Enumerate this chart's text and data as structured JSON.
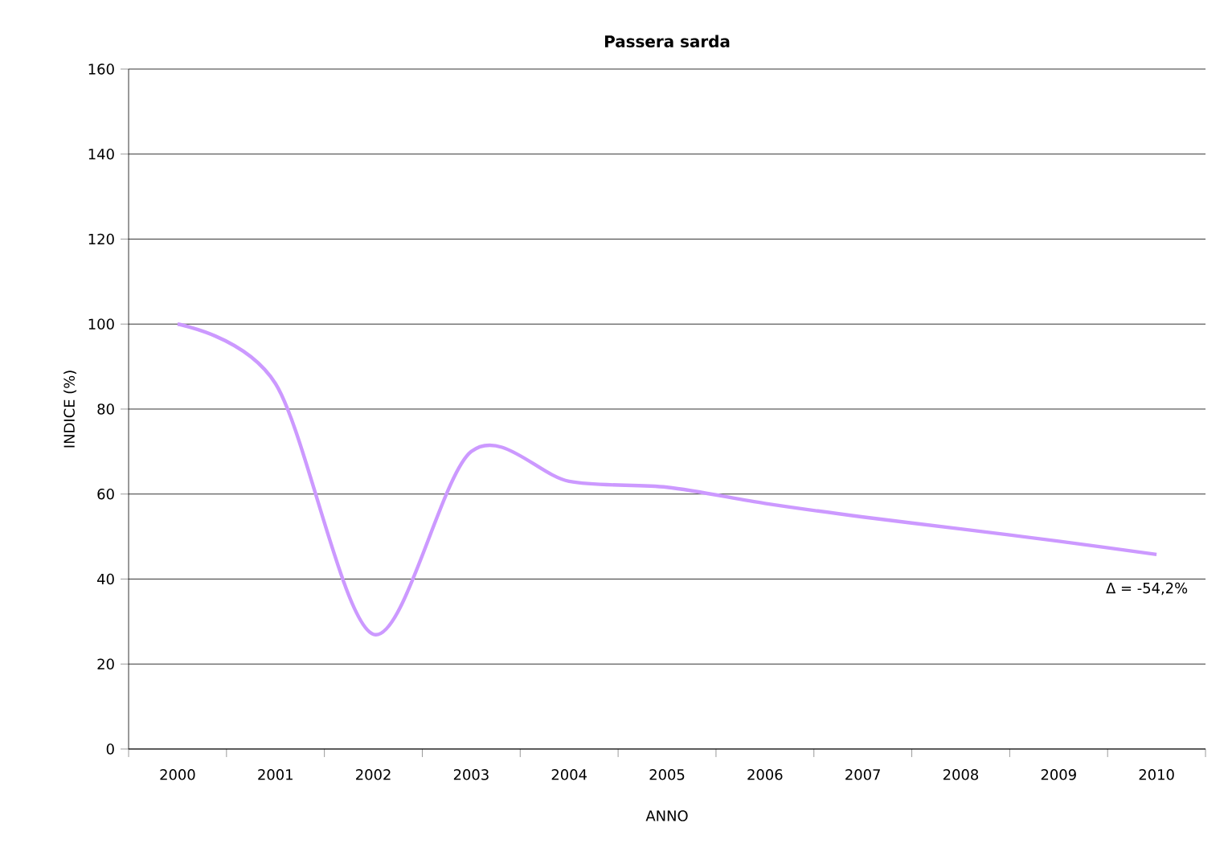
{
  "chart_data": {
    "type": "line",
    "title": "Passera sarda",
    "xlabel": "ANNO",
    "ylabel": "INDICE (%)",
    "categories": [
      "2000",
      "2001",
      "2002",
      "2003",
      "2004",
      "2005",
      "2006",
      "2007",
      "2008",
      "2009",
      "2010"
    ],
    "values": [
      100,
      86,
      27,
      70,
      63,
      61.6,
      57.8,
      54.6,
      51.8,
      48.9,
      45.8
    ],
    "color": "#cc99ff",
    "ylim": [
      0,
      160
    ],
    "yticks": [
      0,
      20,
      40,
      60,
      80,
      100,
      120,
      140,
      160
    ],
    "grid": "y",
    "marker": "none",
    "line_style": "solid",
    "annotations": [
      {
        "text": "Δ = -54,2%",
        "x": "2010",
        "y": 45.8
      }
    ]
  }
}
